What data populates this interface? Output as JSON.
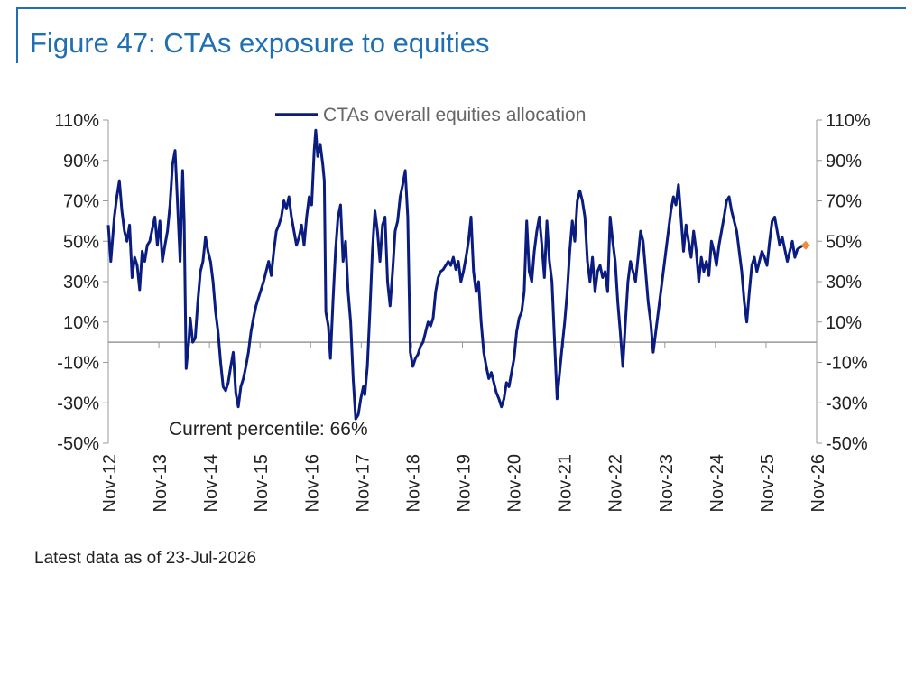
{
  "title": "Figure 47: CTAs exposure to equities",
  "footnote": "Latest data as of 23-Jul-2026",
  "chart_data": {
    "type": "line",
    "title": "Figure 47: CTAs exposure to equities",
    "xlabel": "",
    "ylabel": "",
    "x_ticks": [
      "Nov-12",
      "Nov-13",
      "Nov-14",
      "Nov-15",
      "Nov-16",
      "Nov-17",
      "Nov-18",
      "Nov-19",
      "Nov-20",
      "Nov-21",
      "Nov-22",
      "Nov-23",
      "Nov-24",
      "Nov-25",
      "Nov-26"
    ],
    "y_ticks": [
      "110%",
      "90%",
      "70%",
      "50%",
      "30%",
      "10%",
      "-10%",
      "-30%",
      "-50%"
    ],
    "ylim": [
      -50,
      110
    ],
    "xlim": [
      2012.83,
      2026.83
    ],
    "legend": {
      "position": "top-center",
      "entries": [
        "CTAs overall equities allocation"
      ]
    },
    "annotation": "Current percentile: 66%",
    "colors": {
      "series": "#0b1c80",
      "latest_marker": "#f28c3a",
      "axis": "#999999",
      "title": "#1f6fb2"
    },
    "series": [
      {
        "name": "CTAs overall equities allocation",
        "points": [
          [
            2012.83,
            58
          ],
          [
            2012.88,
            40
          ],
          [
            2012.95,
            62
          ],
          [
            2013.0,
            72
          ],
          [
            2013.05,
            80
          ],
          [
            2013.1,
            65
          ],
          [
            2013.15,
            55
          ],
          [
            2013.2,
            50
          ],
          [
            2013.25,
            58
          ],
          [
            2013.3,
            32
          ],
          [
            2013.35,
            42
          ],
          [
            2013.4,
            38
          ],
          [
            2013.45,
            26
          ],
          [
            2013.5,
            45
          ],
          [
            2013.55,
            40
          ],
          [
            2013.6,
            48
          ],
          [
            2013.65,
            50
          ],
          [
            2013.7,
            56
          ],
          [
            2013.75,
            62
          ],
          [
            2013.8,
            48
          ],
          [
            2013.85,
            60
          ],
          [
            2013.9,
            40
          ],
          [
            2013.95,
            48
          ],
          [
            2014.0,
            55
          ],
          [
            2014.05,
            68
          ],
          [
            2014.1,
            88
          ],
          [
            2014.15,
            95
          ],
          [
            2014.2,
            68
          ],
          [
            2014.25,
            40
          ],
          [
            2014.3,
            85
          ],
          [
            2014.33,
            60
          ],
          [
            2014.37,
            -13
          ],
          [
            2014.42,
            0
          ],
          [
            2014.45,
            12
          ],
          [
            2014.5,
            0
          ],
          [
            2014.55,
            2
          ],
          [
            2014.6,
            20
          ],
          [
            2014.65,
            35
          ],
          [
            2014.7,
            40
          ],
          [
            2014.75,
            52
          ],
          [
            2014.8,
            45
          ],
          [
            2014.85,
            40
          ],
          [
            2014.9,
            30
          ],
          [
            2014.95,
            15
          ],
          [
            2015.0,
            5
          ],
          [
            2015.05,
            -10
          ],
          [
            2015.1,
            -22
          ],
          [
            2015.15,
            -24
          ],
          [
            2015.2,
            -20
          ],
          [
            2015.25,
            -12
          ],
          [
            2015.3,
            -5
          ],
          [
            2015.35,
            -25
          ],
          [
            2015.4,
            -32
          ],
          [
            2015.45,
            -22
          ],
          [
            2015.5,
            -18
          ],
          [
            2015.55,
            -12
          ],
          [
            2015.6,
            -5
          ],
          [
            2015.65,
            5
          ],
          [
            2015.7,
            12
          ],
          [
            2015.75,
            18
          ],
          [
            2015.8,
            22
          ],
          [
            2015.9,
            30
          ],
          [
            2016.0,
            40
          ],
          [
            2016.05,
            33
          ],
          [
            2016.1,
            45
          ],
          [
            2016.15,
            55
          ],
          [
            2016.2,
            58
          ],
          [
            2016.25,
            62
          ],
          [
            2016.3,
            70
          ],
          [
            2016.35,
            66
          ],
          [
            2016.4,
            72
          ],
          [
            2016.45,
            62
          ],
          [
            2016.5,
            55
          ],
          [
            2016.55,
            48
          ],
          [
            2016.6,
            52
          ],
          [
            2016.65,
            58
          ],
          [
            2016.7,
            48
          ],
          [
            2016.75,
            62
          ],
          [
            2016.8,
            72
          ],
          [
            2016.85,
            68
          ],
          [
            2016.9,
            95
          ],
          [
            2016.93,
            105
          ],
          [
            2016.97,
            92
          ],
          [
            2017.02,
            98
          ],
          [
            2017.07,
            88
          ],
          [
            2017.1,
            80
          ],
          [
            2017.13,
            15
          ],
          [
            2017.18,
            8
          ],
          [
            2017.22,
            -8
          ],
          [
            2017.27,
            20
          ],
          [
            2017.32,
            45
          ],
          [
            2017.37,
            62
          ],
          [
            2017.42,
            68
          ],
          [
            2017.47,
            40
          ],
          [
            2017.52,
            50
          ],
          [
            2017.57,
            25
          ],
          [
            2017.62,
            10
          ],
          [
            2017.67,
            -18
          ],
          [
            2017.72,
            -38
          ],
          [
            2017.77,
            -36
          ],
          [
            2017.82,
            -28
          ],
          [
            2017.87,
            -22
          ],
          [
            2017.9,
            -26
          ],
          [
            2017.95,
            -12
          ],
          [
            2018.0,
            15
          ],
          [
            2018.05,
            45
          ],
          [
            2018.1,
            65
          ],
          [
            2018.15,
            55
          ],
          [
            2018.2,
            40
          ],
          [
            2018.25,
            58
          ],
          [
            2018.3,
            62
          ],
          [
            2018.35,
            30
          ],
          [
            2018.4,
            18
          ],
          [
            2018.45,
            35
          ],
          [
            2018.5,
            55
          ],
          [
            2018.55,
            60
          ],
          [
            2018.6,
            72
          ],
          [
            2018.65,
            78
          ],
          [
            2018.7,
            85
          ],
          [
            2018.75,
            62
          ],
          [
            2018.8,
            -5
          ],
          [
            2018.85,
            -12
          ],
          [
            2018.9,
            -8
          ],
          [
            2018.95,
            -6
          ],
          [
            2019.0,
            -2
          ],
          [
            2019.05,
            0
          ],
          [
            2019.1,
            5
          ],
          [
            2019.15,
            10
          ],
          [
            2019.2,
            8
          ],
          [
            2019.25,
            12
          ],
          [
            2019.3,
            25
          ],
          [
            2019.35,
            32
          ],
          [
            2019.4,
            35
          ],
          [
            2019.45,
            36
          ],
          [
            2019.5,
            38
          ],
          [
            2019.55,
            40
          ],
          [
            2019.6,
            38
          ],
          [
            2019.65,
            42
          ],
          [
            2019.7,
            36
          ],
          [
            2019.75,
            40
          ],
          [
            2019.8,
            30
          ],
          [
            2019.85,
            35
          ],
          [
            2019.9,
            42
          ],
          [
            2019.95,
            50
          ],
          [
            2020.0,
            62
          ],
          [
            2020.05,
            35
          ],
          [
            2020.1,
            25
          ],
          [
            2020.15,
            30
          ],
          [
            2020.2,
            10
          ],
          [
            2020.25,
            -5
          ],
          [
            2020.3,
            -12
          ],
          [
            2020.35,
            -18
          ],
          [
            2020.4,
            -15
          ],
          [
            2020.45,
            -20
          ],
          [
            2020.5,
            -25
          ],
          [
            2020.55,
            -28
          ],
          [
            2020.6,
            -32
          ],
          [
            2020.65,
            -28
          ],
          [
            2020.7,
            -20
          ],
          [
            2020.75,
            -22
          ],
          [
            2020.8,
            -15
          ],
          [
            2020.85,
            -8
          ],
          [
            2020.9,
            5
          ],
          [
            2020.95,
            12
          ],
          [
            2021.0,
            15
          ],
          [
            2021.05,
            25
          ],
          [
            2021.1,
            60
          ],
          [
            2021.15,
            35
          ],
          [
            2021.2,
            30
          ],
          [
            2021.25,
            45
          ],
          [
            2021.3,
            55
          ],
          [
            2021.35,
            62
          ],
          [
            2021.4,
            48
          ],
          [
            2021.45,
            32
          ],
          [
            2021.5,
            60
          ],
          [
            2021.55,
            40
          ],
          [
            2021.6,
            30
          ],
          [
            2021.65,
            0
          ],
          [
            2021.7,
            -28
          ],
          [
            2021.75,
            -15
          ],
          [
            2021.8,
            -2
          ],
          [
            2021.85,
            10
          ],
          [
            2021.9,
            25
          ],
          [
            2021.95,
            45
          ],
          [
            2022.0,
            60
          ],
          [
            2022.05,
            50
          ],
          [
            2022.1,
            70
          ],
          [
            2022.15,
            75
          ],
          [
            2022.2,
            70
          ],
          [
            2022.25,
            62
          ],
          [
            2022.3,
            40
          ],
          [
            2022.35,
            30
          ],
          [
            2022.4,
            42
          ],
          [
            2022.45,
            25
          ],
          [
            2022.5,
            35
          ],
          [
            2022.55,
            38
          ],
          [
            2022.6,
            32
          ],
          [
            2022.65,
            35
          ],
          [
            2022.7,
            25
          ],
          [
            2022.75,
            62
          ],
          [
            2022.8,
            50
          ],
          [
            2022.85,
            40
          ],
          [
            2022.9,
            20
          ],
          [
            2022.95,
            5
          ],
          [
            2023.0,
            -12
          ],
          [
            2023.05,
            10
          ],
          [
            2023.1,
            30
          ],
          [
            2023.15,
            40
          ],
          [
            2023.2,
            35
          ],
          [
            2023.25,
            30
          ],
          [
            2023.3,
            42
          ],
          [
            2023.35,
            55
          ],
          [
            2023.4,
            50
          ],
          [
            2023.45,
            35
          ],
          [
            2023.5,
            20
          ],
          [
            2023.55,
            10
          ],
          [
            2023.6,
            -5
          ],
          [
            2023.65,
            5
          ],
          [
            2023.7,
            15
          ],
          [
            2023.75,
            25
          ],
          [
            2023.8,
            35
          ],
          [
            2023.85,
            45
          ],
          [
            2023.9,
            55
          ],
          [
            2023.95,
            65
          ],
          [
            2024.0,
            72
          ],
          [
            2024.05,
            68
          ],
          [
            2024.1,
            78
          ],
          [
            2024.15,
            62
          ],
          [
            2024.2,
            45
          ],
          [
            2024.25,
            58
          ],
          [
            2024.3,
            50
          ],
          [
            2024.35,
            42
          ],
          [
            2024.4,
            55
          ],
          [
            2024.45,
            45
          ],
          [
            2024.5,
            30
          ],
          [
            2024.55,
            42
          ],
          [
            2024.6,
            35
          ],
          [
            2024.65,
            40
          ],
          [
            2024.7,
            33
          ],
          [
            2024.75,
            50
          ],
          [
            2024.8,
            45
          ],
          [
            2024.85,
            38
          ],
          [
            2024.9,
            48
          ],
          [
            2024.95,
            55
          ],
          [
            2025.0,
            62
          ],
          [
            2025.05,
            70
          ],
          [
            2025.1,
            72
          ],
          [
            2025.15,
            65
          ],
          [
            2025.2,
            60
          ],
          [
            2025.25,
            55
          ],
          [
            2025.3,
            45
          ],
          [
            2025.35,
            35
          ],
          [
            2025.4,
            20
          ],
          [
            2025.45,
            10
          ],
          [
            2025.5,
            25
          ],
          [
            2025.55,
            38
          ],
          [
            2025.6,
            42
          ],
          [
            2025.65,
            35
          ],
          [
            2025.7,
            40
          ],
          [
            2025.75,
            45
          ],
          [
            2025.8,
            42
          ],
          [
            2025.85,
            38
          ],
          [
            2025.9,
            50
          ],
          [
            2025.95,
            60
          ],
          [
            2026.0,
            62
          ],
          [
            2026.05,
            55
          ],
          [
            2026.1,
            48
          ],
          [
            2026.15,
            52
          ],
          [
            2026.2,
            46
          ],
          [
            2026.25,
            40
          ],
          [
            2026.3,
            45
          ],
          [
            2026.35,
            50
          ],
          [
            2026.4,
            42
          ],
          [
            2026.45,
            46
          ],
          [
            2026.5,
            47
          ],
          [
            2026.56,
            48
          ]
        ]
      }
    ],
    "latest_point": [
      2026.56,
      48
    ]
  }
}
